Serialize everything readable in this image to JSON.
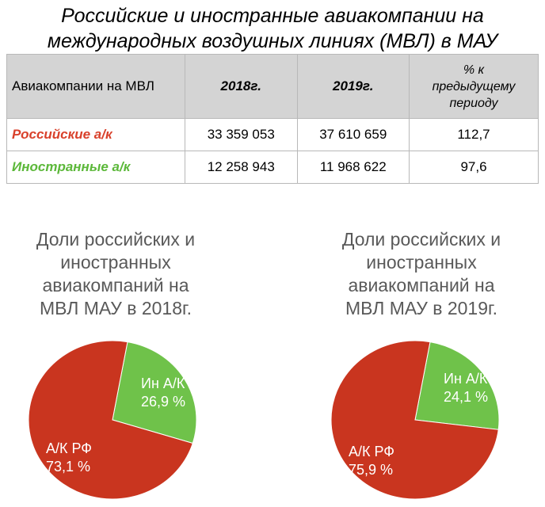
{
  "title": {
    "line1": "Российские и иностранные авиакомпании на",
    "line2": "международных воздушных линиях (МВЛ) в МАУ"
  },
  "table": {
    "headers": [
      "Авиакомпании на МВЛ",
      "2018г.",
      "2019г.",
      "% к предыдущему периоду"
    ],
    "header_pct_lines": [
      "% к",
      "предыдущему",
      "периоду"
    ],
    "rows": [
      {
        "label": "Российские а/к",
        "v2018": "33 359 053",
        "v2019": "37 610 659",
        "pct": "112,7",
        "color": "#d9412b"
      },
      {
        "label": "Иностранные а/к",
        "v2018": "12 258 943",
        "v2019": "11 968 622",
        "pct": "97,6",
        "color": "#5cb83a"
      }
    ]
  },
  "colors": {
    "russian": "#c9351f",
    "foreign": "#6fc24a"
  },
  "chart_data": [
    {
      "type": "pie",
      "title_lines": [
        "Доли российских и",
        "иностранных",
        "авиакомпаний на",
        "МВЛ МАУ в 2018г."
      ],
      "slices": [
        {
          "label_line1": "Ин А/К",
          "label_line2": "26,9 %",
          "value": 26.9,
          "color": "#6fc24a"
        },
        {
          "label_line1": "А/К РФ",
          "label_line2": "73,1 %",
          "value": 73.1,
          "color": "#c9351f"
        }
      ]
    },
    {
      "type": "pie",
      "title_lines": [
        "Доли российских и",
        "иностранных",
        "авиакомпаний на",
        "МВЛ МАУ в 2019г."
      ],
      "slices": [
        {
          "label_line1": "Ин А/К",
          "label_line2": "24,1 %",
          "value": 24.1,
          "color": "#6fc24a"
        },
        {
          "label_line1": "А/К РФ",
          "label_line2": "75,9 %",
          "value": 75.9,
          "color": "#c9351f"
        }
      ]
    }
  ]
}
